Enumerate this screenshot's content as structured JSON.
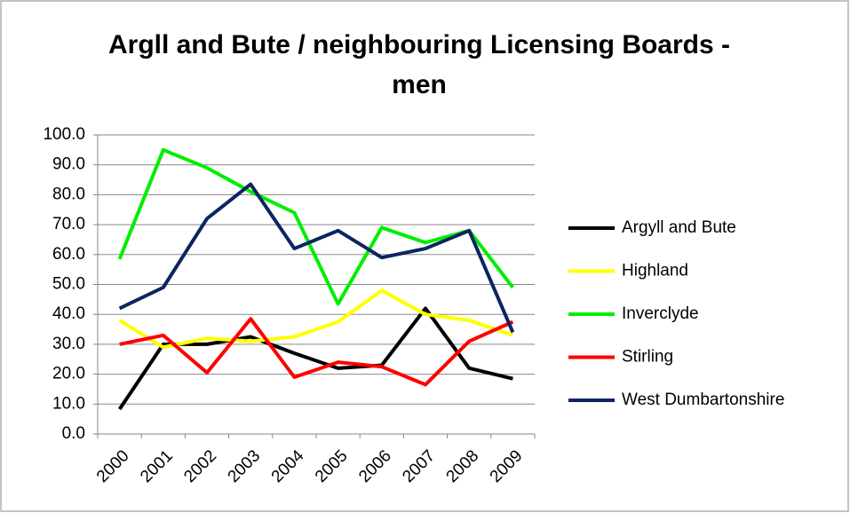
{
  "chart_data": {
    "type": "line",
    "title": "Argll and Bute / neighbouring Licensing Boards - men",
    "categories": [
      "2000",
      "2001",
      "2002",
      "2003",
      "2004",
      "2005",
      "2006",
      "2007",
      "2008",
      "2009"
    ],
    "series": [
      {
        "name": "Argyll and Bute",
        "color": "#000000",
        "values": [
          8.3,
          30,
          30,
          32.5,
          27,
          22,
          23,
          42,
          22,
          18.5
        ]
      },
      {
        "name": "Highland",
        "color": "#ffff00",
        "values": [
          38,
          29,
          32,
          31,
          32.5,
          37.5,
          48,
          40,
          38,
          33
        ]
      },
      {
        "name": "Inverclyde",
        "color": "#00ee00",
        "values": [
          58.5,
          95,
          89,
          81,
          74,
          43.5,
          69,
          64,
          68,
          49
        ]
      },
      {
        "name": "Stirling",
        "color": "#ff0000",
        "values": [
          30,
          33,
          20.5,
          38.5,
          19,
          24,
          22.5,
          16.5,
          31,
          37.5
        ]
      },
      {
        "name": "West Dumbartonshire",
        "color": "#0b2561",
        "values": [
          42,
          49,
          72,
          83.5,
          62,
          68,
          59,
          62,
          68,
          34
        ]
      }
    ],
    "ylim": [
      0,
      100
    ],
    "yticks": [
      {
        "value": 0,
        "label": "0.0"
      },
      {
        "value": 10,
        "label": "10.0"
      },
      {
        "value": 20,
        "label": "20.0"
      },
      {
        "value": 30,
        "label": "30.0"
      },
      {
        "value": 40,
        "label": "40.0"
      },
      {
        "value": 50,
        "label": "50.0"
      },
      {
        "value": 60,
        "label": "60.0"
      },
      {
        "value": 70,
        "label": "70.0"
      },
      {
        "value": 80,
        "label": "80.0"
      },
      {
        "value": 90,
        "label": "90.0"
      },
      {
        "value": 100,
        "label": "100.0"
      }
    ],
    "grid": true,
    "legend": "right"
  }
}
